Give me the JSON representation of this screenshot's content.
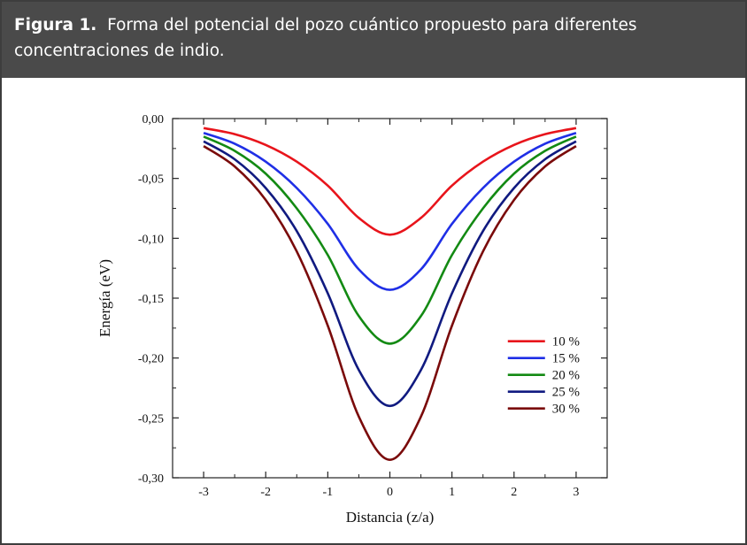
{
  "caption": {
    "label": "Figura 1.",
    "text": "Forma del potencial del pozo cuántico propuesto para diferentes concentraciones de indio."
  },
  "chart_data": {
    "type": "line",
    "xlabel": "Distancia (z/a)",
    "ylabel": "Energía (eV)",
    "xlim": [
      -3.5,
      3.5
    ],
    "ylim": [
      -0.3,
      0.0
    ],
    "x_ticks": [
      -3,
      -2,
      -1,
      0,
      1,
      2,
      3
    ],
    "x_tick_labels": [
      "-3",
      "-2",
      "-1",
      "0",
      "1",
      "2",
      "3"
    ],
    "y_ticks": [
      0.0,
      -0.05,
      -0.1,
      -0.15,
      -0.2,
      -0.25,
      -0.3
    ],
    "y_tick_labels": [
      "0,00",
      "-0,05",
      "-0,10",
      "-0,15",
      "-0,20",
      "-0,25",
      "-0,30"
    ],
    "x": [
      -3,
      -2.5,
      -2,
      -1.5,
      -1,
      -0.5,
      0,
      0.5,
      1,
      1.5,
      2,
      2.5,
      3
    ],
    "series": [
      {
        "name": "10 %",
        "color": "#e8141b",
        "values": [
          -0.008,
          -0.013,
          -0.022,
          -0.036,
          -0.056,
          -0.083,
          -0.097,
          -0.083,
          -0.056,
          -0.036,
          -0.022,
          -0.013,
          -0.008
        ]
      },
      {
        "name": "15 %",
        "color": "#1f2fe6",
        "values": [
          -0.012,
          -0.021,
          -0.036,
          -0.058,
          -0.088,
          -0.126,
          -0.143,
          -0.126,
          -0.088,
          -0.058,
          -0.036,
          -0.021,
          -0.012
        ]
      },
      {
        "name": "20 %",
        "color": "#138a13",
        "values": [
          -0.015,
          -0.027,
          -0.046,
          -0.075,
          -0.114,
          -0.165,
          -0.188,
          -0.165,
          -0.114,
          -0.075,
          -0.046,
          -0.027,
          -0.015
        ]
      },
      {
        "name": "25 %",
        "color": "#101a80",
        "values": [
          -0.019,
          -0.034,
          -0.058,
          -0.094,
          -0.146,
          -0.21,
          -0.24,
          -0.21,
          -0.146,
          -0.094,
          -0.058,
          -0.034,
          -0.019
        ]
      },
      {
        "name": "30 %",
        "color": "#7a0a0a",
        "values": [
          -0.023,
          -0.04,
          -0.068,
          -0.111,
          -0.173,
          -0.249,
          -0.285,
          -0.249,
          -0.173,
          -0.111,
          -0.068,
          -0.04,
          -0.023
        ]
      }
    ],
    "legend": "lower-right",
    "grid": false
  }
}
